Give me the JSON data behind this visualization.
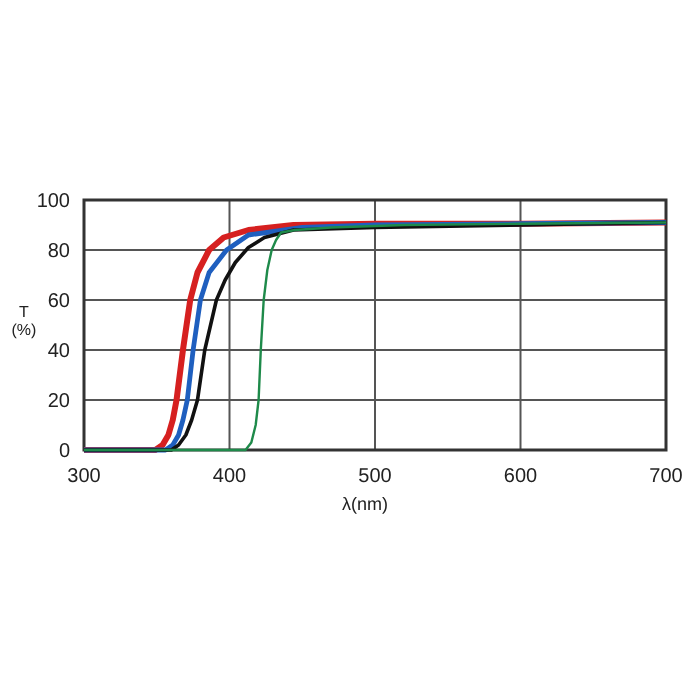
{
  "chart_data": {
    "type": "line",
    "xlabel": "λ(nm)",
    "ylabel": "T\n(%)",
    "xlim": [
      300,
      700
    ],
    "ylim": [
      0,
      100
    ],
    "xticks": [
      300,
      400,
      500,
      600,
      700
    ],
    "yticks": [
      0,
      20,
      40,
      60,
      80,
      100
    ],
    "grid": true,
    "series": [
      {
        "color": "#1e8a4a",
        "x": [
          300,
          411,
          415,
          418,
          420,
          421.5,
          423.5,
          426,
          429,
          432,
          435.5,
          445,
          470,
          520,
          600,
          700
        ],
        "values": [
          0,
          0,
          3,
          10,
          20,
          40,
          60,
          72,
          80,
          84,
          87,
          88,
          89,
          90,
          90.5,
          91
        ]
      },
      {
        "color": "#111111",
        "x": [
          300,
          360,
          365,
          370,
          374,
          378,
          383,
          391,
          397,
          404,
          413,
          424,
          444,
          500,
          600,
          700
        ],
        "values": [
          0,
          0,
          2,
          6,
          12,
          20,
          40,
          60,
          68,
          75,
          81,
          85,
          88,
          89,
          90,
          91
        ]
      },
      {
        "color": "#1f5fbf",
        "x": [
          300,
          356,
          361,
          365,
          368,
          371,
          375,
          380,
          386,
          398,
          413,
          450,
          500,
          600,
          700
        ],
        "values": [
          0,
          0,
          2,
          6,
          12,
          20,
          40,
          60,
          71,
          80,
          86,
          89,
          90,
          90.5,
          91
        ]
      },
      {
        "color": "#d62020",
        "x": [
          300,
          349,
          354,
          358,
          361,
          363.6,
          368,
          373,
          378,
          386,
          396,
          413,
          444,
          500,
          600,
          700
        ],
        "values": [
          0,
          0,
          2,
          6,
          12,
          20,
          40,
          60,
          71,
          80,
          85,
          88,
          90,
          90.5,
          90.5,
          91
        ]
      }
    ]
  }
}
